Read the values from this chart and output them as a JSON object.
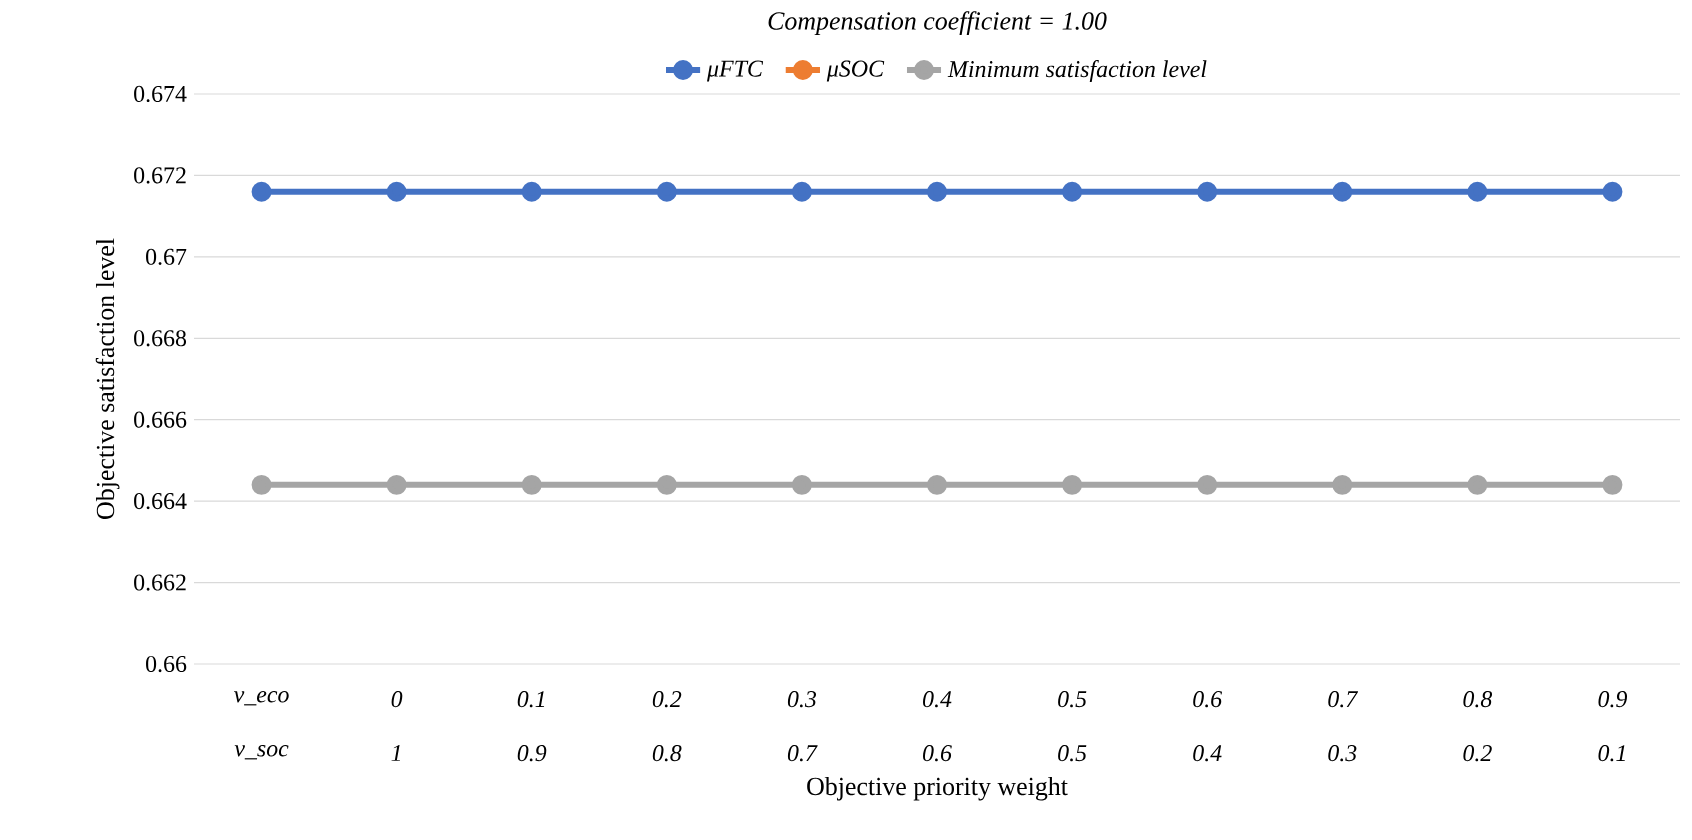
{
  "chart_data": {
    "type": "line",
    "title": "Compensation coefficient = 1.00",
    "xlabel": "Objective priority weight",
    "ylabel": "Objective satisfaction level",
    "categories": [
      "v_eco",
      "0",
      "0.1",
      "0.2",
      "0.3",
      "0.4",
      "0.5",
      "0.6",
      "0.7",
      "0.8",
      "0.9"
    ],
    "annotations": [
      "v_soc",
      "1",
      "0.9",
      "0.8",
      "0.7",
      "0.6",
      "0.5",
      "0.4",
      "0.3",
      "0.2",
      "0.1"
    ],
    "series": [
      {
        "name": "μFTC",
        "color": "#4472c4",
        "values": [
          0.6716,
          0.6716,
          0.6716,
          0.6716,
          0.6716,
          0.6716,
          0.6716,
          0.6716,
          0.6716,
          0.6716,
          0.6716
        ]
      },
      {
        "name": "μSOC",
        "color": "#ed7d31",
        "values": [
          null,
          null,
          null,
          null,
          null,
          null,
          null,
          null,
          null,
          null,
          null
        ]
      },
      {
        "name": "Minimum satisfaction level",
        "color": "#a5a5a5",
        "values": [
          0.6644,
          0.6644,
          0.6644,
          0.6644,
          0.6644,
          0.6644,
          0.6644,
          0.6644,
          0.6644,
          0.6644,
          0.6644
        ]
      }
    ],
    "ylim": [
      0.66,
      0.674
    ],
    "yticks": [
      0.66,
      0.662,
      0.664,
      0.666,
      0.668,
      0.67,
      0.672,
      0.674
    ],
    "grid": "y",
    "legend": "top",
    "marker": "circle",
    "line_style": "solid"
  }
}
